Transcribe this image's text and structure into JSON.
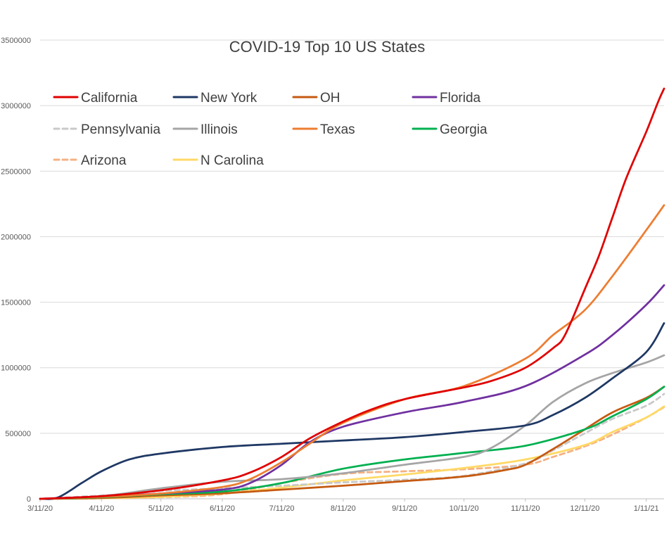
{
  "chart_data": {
    "type": "line",
    "title": "COVID-19 Top 10 US States",
    "xlabel": "",
    "ylabel": "",
    "ylim": [
      0,
      3500000
    ],
    "y_ticks": [
      "0",
      "500000",
      "1000000",
      "1500000",
      "2000000",
      "2500000",
      "3000000",
      "3500000"
    ],
    "x_ticks": [
      "3/11/20",
      "4/11/20",
      "5/11/20",
      "6/11/20",
      "7/11/20",
      "8/11/20",
      "9/11/20",
      "10/11/20",
      "11/11/20",
      "12/11/20",
      "1/11/21"
    ],
    "x_range": [
      "2020-03-11",
      "2021-01-20"
    ],
    "grid": "horizontal",
    "legend_position": "top-left",
    "series": [
      {
        "name": "California",
        "color": "#e00000",
        "dashed": false,
        "x": [
          "2020-03-11",
          "2020-04-11",
          "2020-05-11",
          "2020-06-11",
          "2020-06-25",
          "2020-07-11",
          "2020-07-25",
          "2020-08-11",
          "2020-08-25",
          "2020-09-11",
          "2020-10-11",
          "2020-10-25",
          "2020-11-11",
          "2020-11-25",
          "2020-12-01",
          "2020-12-11",
          "2020-12-18",
          "2020-12-25",
          "2021-01-01",
          "2021-01-11",
          "2021-01-17",
          "2021-01-20"
        ],
        "values": [
          0,
          20000,
          65000,
          140000,
          200000,
          320000,
          460000,
          590000,
          680000,
          760000,
          850000,
          900000,
          1000000,
          1150000,
          1250000,
          1600000,
          1850000,
          2150000,
          2450000,
          2800000,
          3030000,
          3130000
        ]
      },
      {
        "name": "New York",
        "color": "#1f3864",
        "dashed": false,
        "x": [
          "2020-03-11",
          "2020-03-20",
          "2020-04-01",
          "2020-04-11",
          "2020-04-25",
          "2020-05-11",
          "2020-06-11",
          "2020-07-11",
          "2020-08-11",
          "2020-09-11",
          "2020-10-11",
          "2020-11-11",
          "2020-11-25",
          "2020-12-11",
          "2020-12-25",
          "2021-01-11",
          "2021-01-20"
        ],
        "values": [
          0,
          10000,
          120000,
          210000,
          300000,
          345000,
          395000,
          420000,
          445000,
          470000,
          510000,
          560000,
          640000,
          770000,
          920000,
          1120000,
          1340000
        ]
      },
      {
        "name": "OH",
        "color": "#c55a11",
        "dashed": false,
        "x": [
          "2020-03-11",
          "2020-04-11",
          "2020-05-11",
          "2020-06-11",
          "2020-07-11",
          "2020-08-11",
          "2020-09-11",
          "2020-10-11",
          "2020-11-01",
          "2020-11-11",
          "2020-11-25",
          "2020-12-11",
          "2020-12-25",
          "2021-01-11",
          "2021-01-20"
        ],
        "values": [
          0,
          6000,
          25000,
          42000,
          70000,
          100000,
          135000,
          170000,
          220000,
          260000,
          380000,
          530000,
          660000,
          770000,
          855000
        ]
      },
      {
        "name": "Florida",
        "color": "#7030a0",
        "dashed": false,
        "x": [
          "2020-03-11",
          "2020-04-11",
          "2020-05-11",
          "2020-06-11",
          "2020-06-25",
          "2020-07-11",
          "2020-07-25",
          "2020-08-11",
          "2020-09-11",
          "2020-10-11",
          "2020-11-11",
          "2020-12-11",
          "2020-12-25",
          "2021-01-11",
          "2021-01-20"
        ],
        "values": [
          0,
          18000,
          40000,
          70000,
          120000,
          260000,
          430000,
          550000,
          660000,
          740000,
          860000,
          1100000,
          1250000,
          1480000,
          1630000
        ]
      },
      {
        "name": "Pennsylvania",
        "color": "#c9c9c9",
        "dashed": true,
        "x": [
          "2020-03-11",
          "2020-04-11",
          "2020-05-11",
          "2020-06-11",
          "2020-07-11",
          "2020-08-11",
          "2020-09-11",
          "2020-10-11",
          "2020-11-11",
          "2020-11-25",
          "2020-12-11",
          "2020-12-25",
          "2021-01-11",
          "2021-01-20"
        ],
        "values": [
          0,
          25000,
          60000,
          80000,
          100000,
          125000,
          145000,
          175000,
          270000,
          370000,
          500000,
          610000,
          710000,
          800000
        ]
      },
      {
        "name": "Illinois",
        "color": "#a5a5a5",
        "dashed": false,
        "x": [
          "2020-03-11",
          "2020-04-11",
          "2020-05-11",
          "2020-06-11",
          "2020-07-11",
          "2020-08-11",
          "2020-09-11",
          "2020-10-11",
          "2020-10-25",
          "2020-11-11",
          "2020-11-25",
          "2020-12-11",
          "2020-12-25",
          "2021-01-11",
          "2021-01-20"
        ],
        "values": [
          0,
          20000,
          80000,
          130000,
          150000,
          195000,
          260000,
          320000,
          390000,
          560000,
          740000,
          880000,
          960000,
          1040000,
          1095000
        ]
      },
      {
        "name": "Texas",
        "color": "#ed7d31",
        "dashed": false,
        "x": [
          "2020-03-11",
          "2020-04-11",
          "2020-05-11",
          "2020-06-11",
          "2020-06-25",
          "2020-07-11",
          "2020-07-25",
          "2020-08-11",
          "2020-09-11",
          "2020-10-11",
          "2020-11-11",
          "2020-11-25",
          "2020-12-11",
          "2020-12-25",
          "2021-01-11",
          "2021-01-20"
        ],
        "values": [
          0,
          15000,
          40000,
          90000,
          150000,
          280000,
          420000,
          580000,
          760000,
          860000,
          1070000,
          1250000,
          1440000,
          1700000,
          2050000,
          2240000
        ]
      },
      {
        "name": "Georgia",
        "color": "#00b050",
        "dashed": false,
        "x": [
          "2020-03-11",
          "2020-04-11",
          "2020-05-11",
          "2020-06-11",
          "2020-07-11",
          "2020-08-11",
          "2020-09-11",
          "2020-10-11",
          "2020-11-11",
          "2020-12-11",
          "2020-12-25",
          "2021-01-11",
          "2021-01-20"
        ],
        "values": [
          0,
          12000,
          35000,
          55000,
          120000,
          230000,
          300000,
          350000,
          405000,
          530000,
          630000,
          760000,
          855000
        ]
      },
      {
        "name": "Arizona",
        "color": "#f4b183",
        "dashed": true,
        "x": [
          "2020-03-11",
          "2020-04-11",
          "2020-05-11",
          "2020-06-11",
          "2020-07-11",
          "2020-08-11",
          "2020-09-11",
          "2020-10-11",
          "2020-11-11",
          "2020-11-25",
          "2020-12-11",
          "2020-12-25",
          "2021-01-11",
          "2021-01-20"
        ],
        "values": [
          0,
          4000,
          12000,
          35000,
          120000,
          190000,
          210000,
          225000,
          260000,
          320000,
          400000,
          490000,
          620000,
          700000
        ]
      },
      {
        "name": "N Carolina",
        "color": "#ffd966",
        "dashed": false,
        "x": [
          "2020-03-11",
          "2020-04-11",
          "2020-05-11",
          "2020-06-11",
          "2020-07-11",
          "2020-08-11",
          "2020-09-11",
          "2020-10-11",
          "2020-11-11",
          "2020-12-11",
          "2020-12-25",
          "2021-01-11",
          "2021-01-20"
        ],
        "values": [
          0,
          5000,
          15000,
          40000,
          85000,
          140000,
          185000,
          235000,
          300000,
          410000,
          510000,
          620000,
          705000
        ]
      }
    ]
  }
}
